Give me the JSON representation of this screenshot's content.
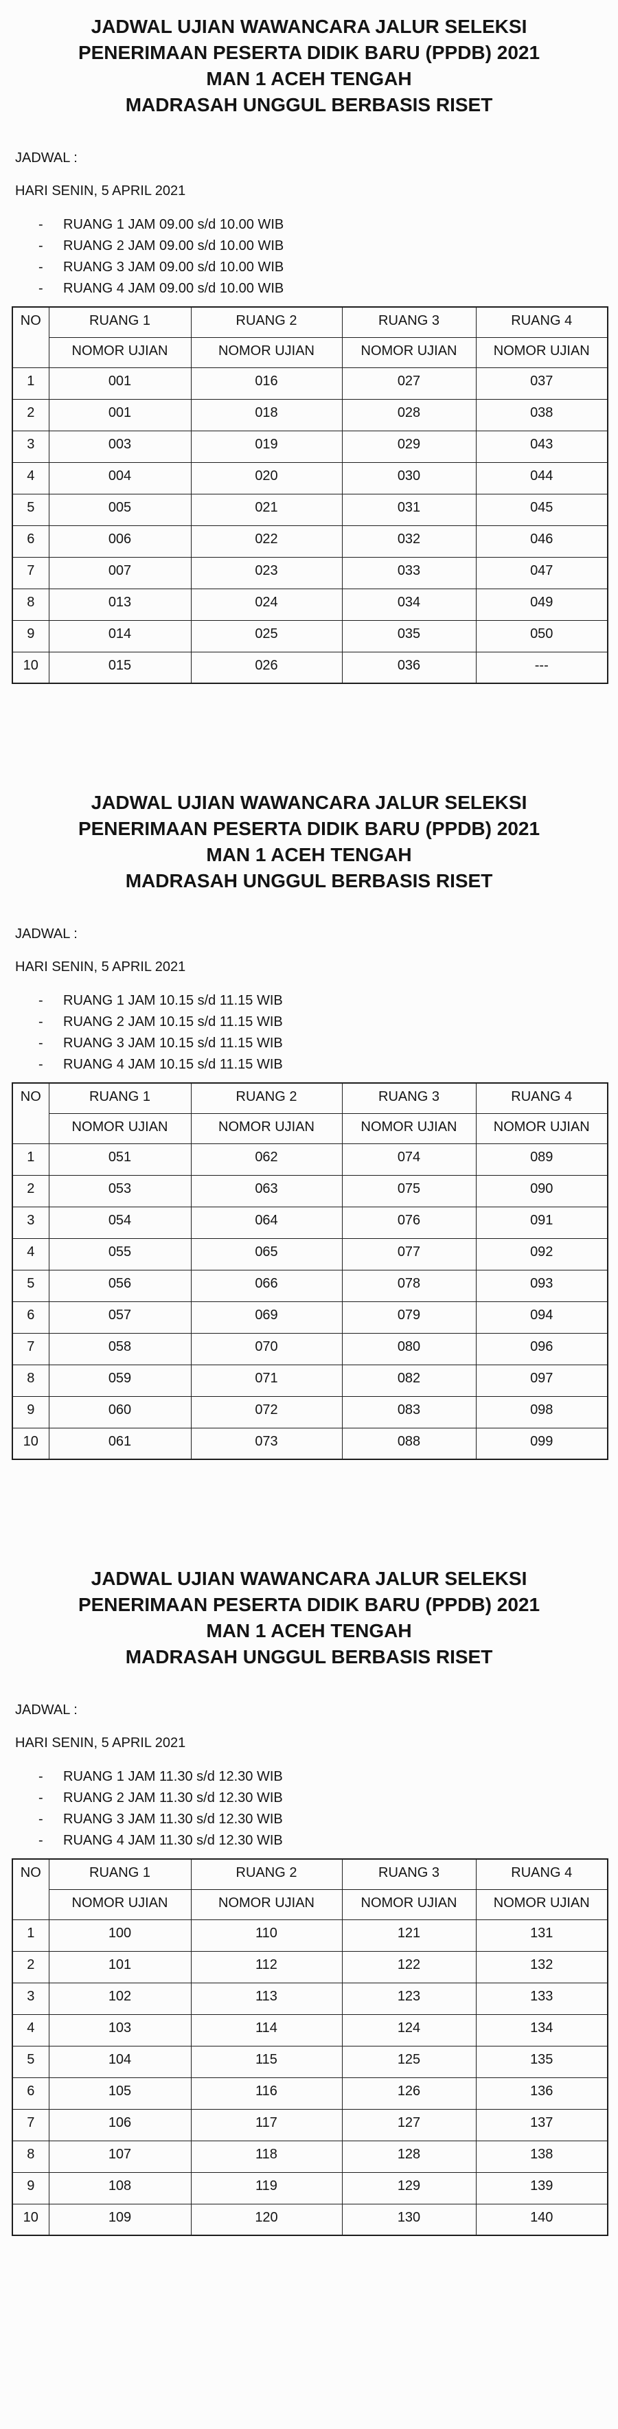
{
  "colors": {
    "text": "#141414",
    "background": "#fcfcfc",
    "table_border": "#1e1e1e"
  },
  "list_bullet": "-",
  "sections": [
    {
      "title_lines": [
        "JADWAL UJIAN WAWANCARA JALUR SELEKSI",
        "PENERIMAAN PESERTA DIDIK BARU (PPDB) 2021",
        "MAN 1 ACEH TENGAH",
        "MADRASAH UNGGUL BERBASIS RISET"
      ],
      "jadwal_label": "JADWAL :",
      "day_line": "HARI SENIN, 5 APRIL 2021",
      "schedule_items": [
        "RUANG 1 JAM 09.00 s/d 10.00 WIB",
        "RUANG 2 JAM 09.00 s/d 10.00 WIB",
        "RUANG 3 JAM 09.00 s/d 10.00 WIB",
        "RUANG 4 JAM 09.00 s/d 10.00 WIB"
      ],
      "table": {
        "no_header": "NO",
        "room_headers": [
          "RUANG 1",
          "RUANG 2",
          "RUANG 3",
          "RUANG 4"
        ],
        "sub_header": "NOMOR UJIAN",
        "rows": [
          {
            "no": "1",
            "values": [
              "001",
              "016",
              "027",
              "037"
            ]
          },
          {
            "no": "2",
            "values": [
              "001",
              "018",
              "028",
              "038"
            ]
          },
          {
            "no": "3",
            "values": [
              "003",
              "019",
              "029",
              "043"
            ]
          },
          {
            "no": "4",
            "values": [
              "004",
              "020",
              "030",
              "044"
            ]
          },
          {
            "no": "5",
            "values": [
              "005",
              "021",
              "031",
              "045"
            ]
          },
          {
            "no": "6",
            "values": [
              "006",
              "022",
              "032",
              "046"
            ]
          },
          {
            "no": "7",
            "values": [
              "007",
              "023",
              "033",
              "047"
            ]
          },
          {
            "no": "8",
            "values": [
              "013",
              "024",
              "034",
              "049"
            ]
          },
          {
            "no": "9",
            "values": [
              "014",
              "025",
              "035",
              "050"
            ]
          },
          {
            "no": "10",
            "values": [
              "015",
              "026",
              "036",
              "---"
            ]
          }
        ]
      }
    },
    {
      "title_lines": [
        "JADWAL UJIAN WAWANCARA JALUR SELEKSI",
        "PENERIMAAN PESERTA DIDIK BARU (PPDB) 2021",
        "MAN 1 ACEH TENGAH",
        "MADRASAH UNGGUL BERBASIS RISET"
      ],
      "jadwal_label": "JADWAL :",
      "day_line": "HARI SENIN, 5 APRIL 2021",
      "schedule_items": [
        "RUANG 1 JAM 10.15 s/d 11.15 WIB",
        "RUANG 2 JAM 10.15 s/d 11.15 WIB",
        "RUANG 3 JAM 10.15 s/d 11.15 WIB",
        "RUANG 4 JAM 10.15 s/d 11.15 WIB"
      ],
      "table": {
        "no_header": "NO",
        "room_headers": [
          "RUANG 1",
          "RUANG 2",
          "RUANG 3",
          "RUANG 4"
        ],
        "sub_header": "NOMOR UJIAN",
        "rows": [
          {
            "no": "1",
            "values": [
              "051",
              "062",
              "074",
              "089"
            ]
          },
          {
            "no": "2",
            "values": [
              "053",
              "063",
              "075",
              "090"
            ]
          },
          {
            "no": "3",
            "values": [
              "054",
              "064",
              "076",
              "091"
            ]
          },
          {
            "no": "4",
            "values": [
              "055",
              "065",
              "077",
              "092"
            ]
          },
          {
            "no": "5",
            "values": [
              "056",
              "066",
              "078",
              "093"
            ]
          },
          {
            "no": "6",
            "values": [
              "057",
              "069",
              "079",
              "094"
            ]
          },
          {
            "no": "7",
            "values": [
              "058",
              "070",
              "080",
              "096"
            ]
          },
          {
            "no": "8",
            "values": [
              "059",
              "071",
              "082",
              "097"
            ]
          },
          {
            "no": "9",
            "values": [
              "060",
              "072",
              "083",
              "098"
            ]
          },
          {
            "no": "10",
            "values": [
              "061",
              "073",
              "088",
              "099"
            ]
          }
        ]
      }
    },
    {
      "title_lines": [
        "JADWAL UJIAN WAWANCARA JALUR SELEKSI",
        "PENERIMAAN PESERTA DIDIK BARU (PPDB) 2021",
        "MAN 1 ACEH TENGAH",
        "MADRASAH UNGGUL BERBASIS RISET"
      ],
      "jadwal_label": "JADWAL :",
      "day_line": "HARI SENIN, 5 APRIL 2021",
      "schedule_items": [
        "RUANG 1 JAM 11.30 s/d 12.30 WIB",
        "RUANG 2 JAM 11.30 s/d 12.30 WIB",
        "RUANG 3 JAM 11.30 s/d 12.30 WIB",
        "RUANG 4 JAM 11.30 s/d 12.30 WIB"
      ],
      "table": {
        "no_header": "NO",
        "room_headers": [
          "RUANG 1",
          "RUANG 2",
          "RUANG 3",
          "RUANG 4"
        ],
        "sub_header": "NOMOR UJIAN",
        "rows": [
          {
            "no": "1",
            "values": [
              "100",
              "110",
              "121",
              "131"
            ]
          },
          {
            "no": "2",
            "values": [
              "101",
              "112",
              "122",
              "132"
            ]
          },
          {
            "no": "3",
            "values": [
              "102",
              "113",
              "123",
              "133"
            ]
          },
          {
            "no": "4",
            "values": [
              "103",
              "114",
              "124",
              "134"
            ]
          },
          {
            "no": "5",
            "values": [
              "104",
              "115",
              "125",
              "135"
            ]
          },
          {
            "no": "6",
            "values": [
              "105",
              "116",
              "126",
              "136"
            ]
          },
          {
            "no": "7",
            "values": [
              "106",
              "117",
              "127",
              "137"
            ]
          },
          {
            "no": "8",
            "values": [
              "107",
              "118",
              "128",
              "138"
            ]
          },
          {
            "no": "9",
            "values": [
              "108",
              "119",
              "129",
              "139"
            ]
          },
          {
            "no": "10",
            "values": [
              "109",
              "120",
              "130",
              "140"
            ]
          }
        ]
      }
    }
  ]
}
